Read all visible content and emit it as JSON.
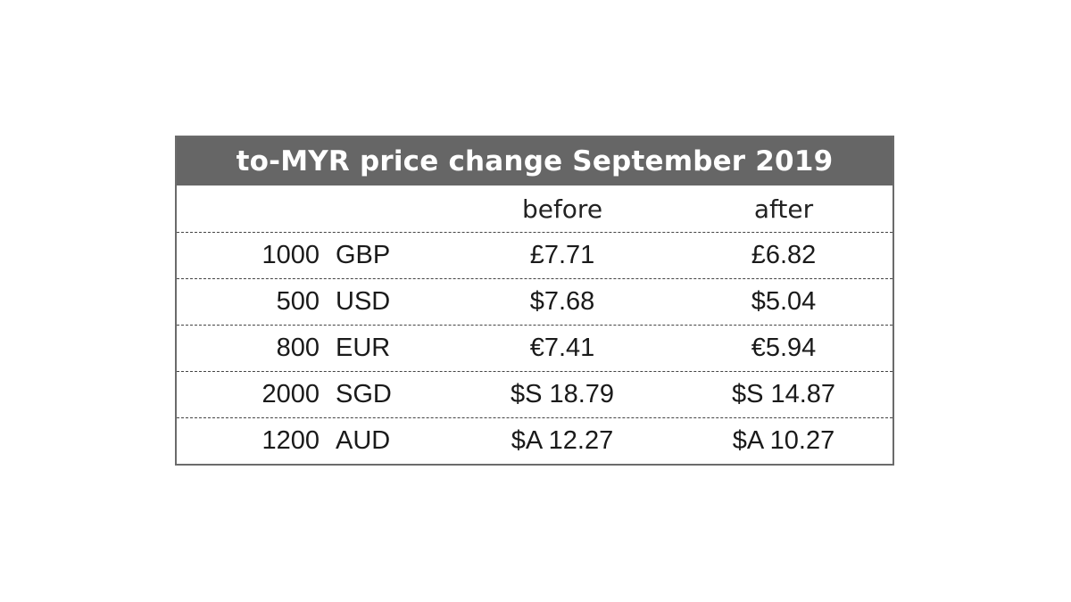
{
  "table": {
    "title": "to-MYR price change September 2019",
    "columns": {
      "before": "before",
      "after": "after"
    },
    "rows": [
      {
        "amount": "1000",
        "currency": "GBP",
        "before": "£7.71",
        "after": "£6.82"
      },
      {
        "amount": "500",
        "currency": "USD",
        "before": "$7.68",
        "after": "$5.04"
      },
      {
        "amount": "800",
        "currency": "EUR",
        "before": "€7.41",
        "after": "€5.94"
      },
      {
        "amount": "2000",
        "currency": "SGD",
        "before": "$S 18.79",
        "after": "$S 14.87"
      },
      {
        "amount": "1200",
        "currency": "AUD",
        "before": "$A 12.27",
        "after": "$A 10.27"
      }
    ]
  },
  "colors": {
    "title_background": "#666666",
    "title_text": "#ffffff",
    "border": "#6b6b6b",
    "row_divider": "#444444"
  }
}
